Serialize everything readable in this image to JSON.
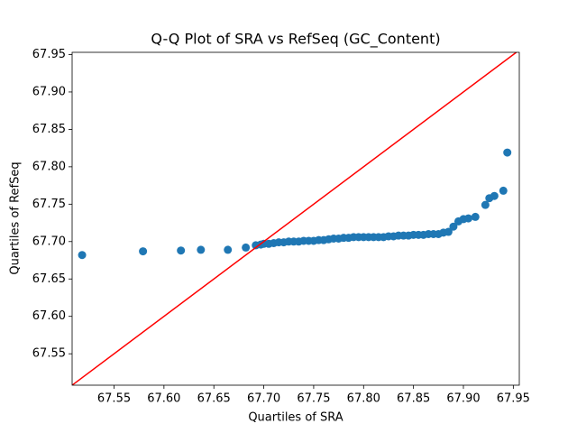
{
  "chart_data": {
    "type": "scatter",
    "title": "Q-Q Plot of SRA vs RefSeq (GC_Content)",
    "x_label": "Quartiles of SRA",
    "y_label": "Quartiles of RefSeq",
    "color": "#1f77b4",
    "reference_line_color": "red",
    "xlim": [
      67.508,
      67.956
    ],
    "ylim": [
      67.508,
      67.953
    ],
    "xticks": [
      67.55,
      {
        "value": 67.6,
        "label": "67.60"
      },
      67.65,
      {
        "value": 67.7,
        "label": "67.70"
      },
      67.75,
      {
        "value": 67.8,
        "label": "67.80"
      },
      67.85,
      {
        "value": 67.9,
        "label": "67.90"
      },
      67.95
    ],
    "yticks": [
      67.55,
      {
        "value": 67.6,
        "label": "67.60"
      },
      67.65,
      {
        "value": 67.7,
        "label": "67.70"
      },
      67.75,
      {
        "value": 67.8,
        "label": "67.80"
      },
      67.85,
      {
        "value": 67.9,
        "label": "67.90"
      },
      67.95
    ],
    "x": [
      67.518,
      67.579,
      67.617,
      67.637,
      67.664,
      67.682,
      67.692,
      67.697,
      67.7,
      67.705,
      67.71,
      67.715,
      67.72,
      67.725,
      67.73,
      67.735,
      67.74,
      67.745,
      67.75,
      67.755,
      67.76,
      67.765,
      67.77,
      67.775,
      67.78,
      67.785,
      67.79,
      67.795,
      67.8,
      67.805,
      67.81,
      67.815,
      67.82,
      67.825,
      67.83,
      67.835,
      67.84,
      67.845,
      67.85,
      67.855,
      67.86,
      67.865,
      67.87,
      67.875,
      67.88,
      67.885,
      67.89,
      67.895,
      67.9,
      67.905,
      67.912,
      67.922,
      67.926,
      67.931,
      67.94,
      67.944
    ],
    "values": [
      67.682,
      67.687,
      67.688,
      67.689,
      67.689,
      67.692,
      67.695,
      67.696,
      67.697,
      67.697,
      67.698,
      67.699,
      67.699,
      67.7,
      67.7,
      67.7,
      67.701,
      67.701,
      67.701,
      67.702,
      67.702,
      67.703,
      67.704,
      67.704,
      67.705,
      67.705,
      67.706,
      67.706,
      67.706,
      67.706,
      67.706,
      67.706,
      67.706,
      67.707,
      67.707,
      67.708,
      67.708,
      67.708,
      67.709,
      67.709,
      67.709,
      67.71,
      67.71,
      67.71,
      67.712,
      67.713,
      67.72,
      67.727,
      67.73,
      67.731,
      67.733,
      67.749,
      67.758,
      67.761,
      67.768,
      67.819
    ]
  }
}
